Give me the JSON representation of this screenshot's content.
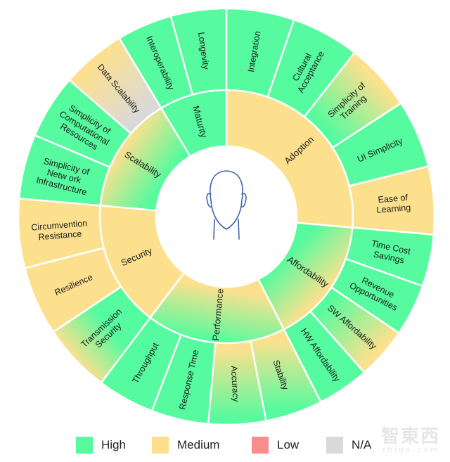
{
  "colors": {
    "High": "#55FB9E",
    "Medium": "#FDE08E",
    "Low": "#F98C8C",
    "N/A": "#D9D9D9",
    "center_icon": "#3E64B0"
  },
  "center_icon": "person-head-icon",
  "categories": [
    {
      "name": "Adoption",
      "fill": [
        "Medium"
      ],
      "children": [
        {
          "name": "Integration",
          "lines": [
            "Integration"
          ],
          "fill": [
            "High"
          ]
        },
        {
          "name": "Cultural Acceptance",
          "lines": [
            "Cultural",
            "Acceptance"
          ],
          "fill": [
            "High"
          ]
        },
        {
          "name": "Simplicity of Training",
          "lines": [
            "Simplicity of",
            "Training"
          ],
          "fill": [
            "High",
            "Medium"
          ]
        },
        {
          "name": "UI Simplicity",
          "lines": [
            "UI Simplicity"
          ],
          "fill": [
            "High"
          ]
        },
        {
          "name": "Ease of Learning",
          "lines": [
            "Ease of",
            "Learning"
          ],
          "fill": [
            "Medium"
          ]
        }
      ]
    },
    {
      "name": "Affordability",
      "fill": [
        "High",
        "Medium"
      ],
      "children": [
        {
          "name": "Time Cost Savings",
          "lines": [
            "Time Cost",
            "Savings"
          ],
          "fill": [
            "High"
          ]
        },
        {
          "name": "Revenue Opportunities",
          "lines": [
            "Revenue",
            "Opportunities"
          ],
          "fill": [
            "High"
          ]
        },
        {
          "name": "SW Affordability",
          "lines": [
            "SW Affordability"
          ],
          "fill": [
            "High",
            "Medium"
          ]
        },
        {
          "name": "HW Affordability",
          "lines": [
            "HW Affordability"
          ],
          "fill": [
            "High"
          ]
        }
      ]
    },
    {
      "name": "Performance",
      "fill": [
        "Medium",
        "High"
      ],
      "children": [
        {
          "name": "Stability",
          "lines": [
            "Stability"
          ],
          "fill": [
            "Medium",
            "High"
          ]
        },
        {
          "name": "Accuracy",
          "lines": [
            "Accuracy"
          ],
          "fill": [
            "Medium",
            "High"
          ]
        },
        {
          "name": "Response Time",
          "lines": [
            "Response Time"
          ],
          "fill": [
            "High"
          ]
        },
        {
          "name": "Throughput",
          "lines": [
            "Throughput"
          ],
          "fill": [
            "High"
          ]
        }
      ]
    },
    {
      "name": "Security",
      "fill": [
        "Medium"
      ],
      "children": [
        {
          "name": "Transmission Security",
          "lines": [
            "Transmission",
            "Security"
          ],
          "fill": [
            "Medium",
            "High"
          ]
        },
        {
          "name": "Resilience",
          "lines": [
            "Resilience"
          ],
          "fill": [
            "Medium"
          ]
        },
        {
          "name": "Circumvention Resistance",
          "lines": [
            "Circumvention",
            "Resistance"
          ],
          "fill": [
            "Medium"
          ]
        }
      ]
    },
    {
      "name": "Scalability",
      "fill": [
        "Medium",
        "High"
      ],
      "children": [
        {
          "name": "Simplicity of Network Infrastructure",
          "lines": [
            "Simplicity of",
            "Netw ork",
            "Infrastructure"
          ],
          "fill": [
            "High"
          ]
        },
        {
          "name": "Simplicity of Computational Resources",
          "lines": [
            "Simplicity of",
            "Computational",
            "Resources"
          ],
          "fill": [
            "High"
          ]
        },
        {
          "name": "Data Scalability",
          "lines": [
            "Data Scalability"
          ],
          "fill": [
            "Medium",
            "N/A"
          ]
        }
      ]
    },
    {
      "name": "Maturity",
      "fill": [
        "High"
      ],
      "children": [
        {
          "name": "Interoperability",
          "lines": [
            "Interoperability"
          ],
          "fill": [
            "High"
          ]
        },
        {
          "name": "Longevity",
          "lines": [
            "Longevity"
          ],
          "fill": [
            "High"
          ]
        }
      ]
    }
  ],
  "legend": [
    {
      "label": "High",
      "key": "High"
    },
    {
      "label": "Medium",
      "key": "Medium"
    },
    {
      "label": "Low",
      "key": "Low"
    },
    {
      "label": "N/A",
      "key": "N/A"
    }
  ],
  "watermark": {
    "logo": "智東西",
    "url": "zhidx.com"
  }
}
